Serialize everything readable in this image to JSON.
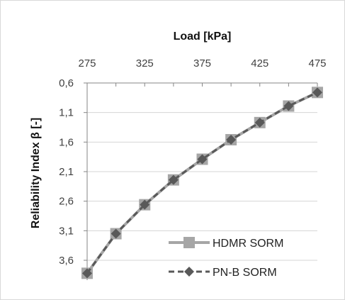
{
  "chart_data": {
    "type": "line",
    "title": "",
    "xlabel": "Load [kPa]",
    "ylabel": "Reliability Index β [-]",
    "x_axis_position": "top",
    "y_axis_inverted": true,
    "xlim": [
      275,
      475
    ],
    "ylim": [
      0.6,
      3.6
    ],
    "x_ticks": [
      275,
      325,
      375,
      425,
      475
    ],
    "x_tick_labels": [
      "275",
      "325",
      "375",
      "425",
      "475"
    ],
    "y_ticks": [
      0.6,
      1.1,
      1.6,
      2.1,
      2.6,
      3.1,
      3.6
    ],
    "y_tick_labels": [
      "0,6",
      "1,1",
      "1,6",
      "2,1",
      "2,6",
      "3,1",
      "3,6"
    ],
    "grid": "horizontal",
    "legend_position": "bottom-right",
    "x": [
      275,
      300,
      325,
      350,
      375,
      400,
      425,
      450,
      475
    ],
    "series": [
      {
        "name": "HDMR SORM",
        "color": "#a6a6a6",
        "marker": "square",
        "dash": "solid",
        "values": [
          3.82,
          3.15,
          2.66,
          2.24,
          1.89,
          1.56,
          1.27,
          0.99,
          0.76
        ]
      },
      {
        "name": "PN-B SORM",
        "color": "#595959",
        "marker": "diamond",
        "dash": "dashed",
        "values": [
          3.82,
          3.15,
          2.66,
          2.24,
          1.89,
          1.56,
          1.27,
          0.99,
          0.76
        ]
      }
    ]
  }
}
